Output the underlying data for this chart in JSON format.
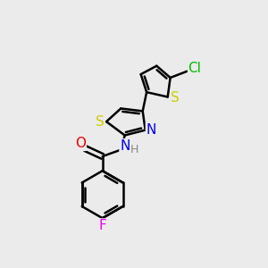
{
  "background_color": "#ebebeb",
  "bond_color": "#000000",
  "bond_width": 1.8,
  "atom_colors": {
    "S": "#cccc00",
    "N": "#0000ee",
    "O": "#ee0000",
    "Cl": "#00bb00",
    "F": "#ee00ee",
    "H": "#888888",
    "C": "#000000"
  },
  "font_size": 10,
  "fig_width": 3.0,
  "fig_height": 3.0,
  "dpi": 100
}
